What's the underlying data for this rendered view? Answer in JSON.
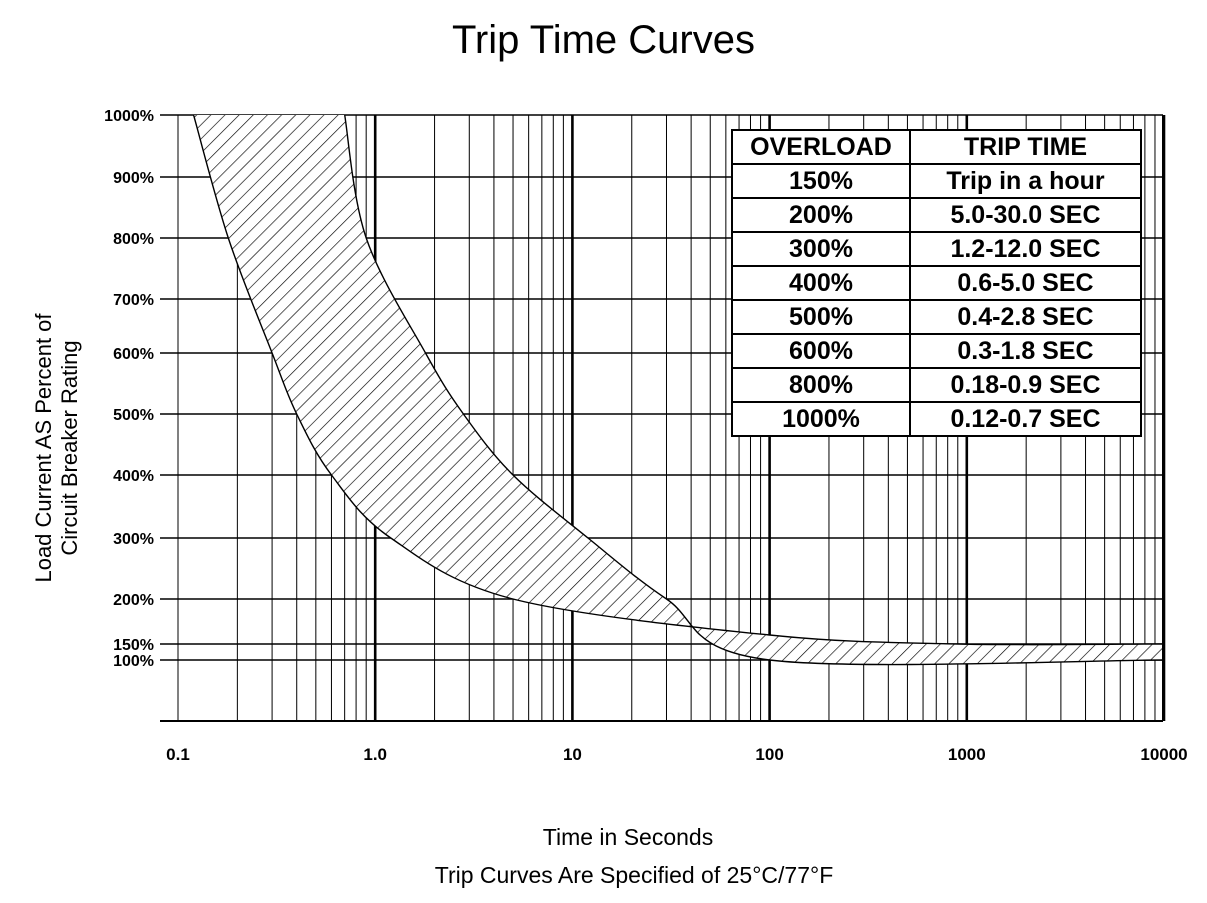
{
  "chart_data": {
    "type": "area",
    "title": "Trip Time Curves",
    "xlabel": "Time in Seconds",
    "ylabel_lines": [
      "Load Current AS Percent of",
      "Circuit Breaker Rating"
    ],
    "footnote": "Trip Curves Are Specified of 25°C/77°F",
    "x_scale": "log",
    "xlim": [
      0.1,
      10000
    ],
    "x_ticks": [
      {
        "value": 0.1,
        "label": "0.1"
      },
      {
        "value": 1,
        "label": "1.0"
      },
      {
        "value": 10,
        "label": "10"
      },
      {
        "value": 100,
        "label": "100"
      },
      {
        "value": 1000,
        "label": "1000"
      },
      {
        "value": 10000,
        "label": "10000"
      }
    ],
    "y_ticks": [
      {
        "value": 100,
        "label": "100%"
      },
      {
        "value": 150,
        "label": "150%"
      },
      {
        "value": 200,
        "label": "200%"
      },
      {
        "value": 300,
        "label": "300%"
      },
      {
        "value": 400,
        "label": "400%"
      },
      {
        "value": 500,
        "label": "500%"
      },
      {
        "value": 600,
        "label": "600%"
      },
      {
        "value": 700,
        "label": "700%"
      },
      {
        "value": 800,
        "label": "800%"
      },
      {
        "value": 900,
        "label": "900%"
      },
      {
        "value": 1000,
        "label": "1000%"
      }
    ],
    "grid": true,
    "series": [
      {
        "points": [
          [
            0.12,
            1000
          ],
          [
            0.18,
            800
          ],
          [
            0.3,
            600
          ],
          [
            0.4,
            500
          ],
          [
            0.6,
            400
          ],
          [
            1.2,
            300
          ],
          [
            5.0,
            200
          ],
          [
            100,
            160
          ],
          [
            900,
            150
          ],
          [
            10000,
            150
          ]
        ]
      },
      {
        "points": [
          [
            0.7,
            1000
          ],
          [
            0.9,
            800
          ],
          [
            1.8,
            600
          ],
          [
            2.8,
            500
          ],
          [
            5.0,
            400
          ],
          [
            12.0,
            300
          ],
          [
            30.0,
            200
          ],
          [
            100,
            100
          ],
          [
            10000,
            100
          ]
        ]
      }
    ],
    "fill": "hatched band between the two curves",
    "table": {
      "headers": [
        "OVERLOAD",
        "TRIP TIME"
      ],
      "rows": [
        [
          "150%",
          "Trip in a hour"
        ],
        [
          "200%",
          "5.0-30.0 SEC"
        ],
        [
          "300%",
          "1.2-12.0 SEC"
        ],
        [
          "400%",
          "0.6-5.0 SEC"
        ],
        [
          "500%",
          "0.4-2.8 SEC"
        ],
        [
          "600%",
          "0.3-1.8 SEC"
        ],
        [
          "800%",
          "0.18-0.9 SEC"
        ],
        [
          "1000%",
          "0.12-0.7 SEC"
        ]
      ]
    }
  }
}
